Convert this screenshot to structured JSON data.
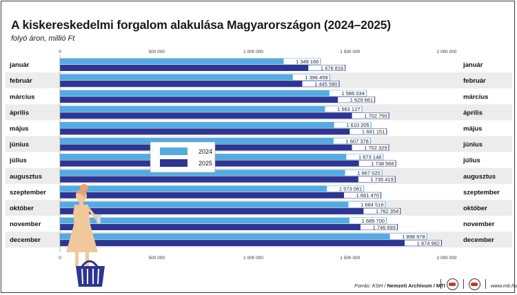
{
  "title": "A kiskereskedelmi forgalom alakulása Magyarországon (2024–2025)",
  "subtitle": "folyó áron, millió Ft",
  "footer": {
    "source_prefix": "Forrás: KSH / ",
    "source_bold": "Nemzeti Archívum / MTI",
    "url": "www.mti.hu"
  },
  "colors": {
    "2024": "#55abe0",
    "2025": "#2e3592",
    "band": "#ececec"
  },
  "chart_data": {
    "type": "bar",
    "orientation": "horizontal",
    "categories": [
      "január",
      "február",
      "március",
      "április",
      "május",
      "június",
      "július",
      "augusztus",
      "szeptember",
      "október",
      "november",
      "december"
    ],
    "series": [
      {
        "name": "2024",
        "values": [
          1349166,
          1396459,
          1586034,
          1563127,
          1610205,
          1607378,
          1673148,
          1667020,
          1573061,
          1684516,
          1689700,
          1898978
        ],
        "labels": [
          "1 349 166",
          "1 396 459",
          "1 586 034",
          "1 563 127",
          "1 610 205",
          "1 607 378",
          "1 673 148",
          "1 667 020",
          "1 573 061",
          "1 684 516",
          "1 689 700",
          "1 898 978"
        ]
      },
      {
        "name": "2025",
        "values": [
          1476816,
          1445580,
          1629661,
          1702750,
          1691151,
          1702329,
          1738566,
          1735419,
          1661470,
          1762354,
          1746693,
          1974982
        ],
        "labels": [
          "1 476 816",
          "1 445 580",
          "1 629 661",
          "1 702 750",
          "1 691 151",
          "1 702 329",
          "1 738 566",
          "1 735 419",
          "1 661 470",
          "1 762 354",
          "1 746 693",
          "1 974 982"
        ]
      }
    ],
    "xlim": [
      0,
      2000000
    ],
    "ticks": [
      0,
      500000,
      1000000,
      1500000,
      2000000
    ],
    "tick_labels": [
      "0",
      "500 000",
      "1 000 000",
      "1 500 000",
      "2 000 000"
    ],
    "legend": {
      "placement": "center-left",
      "entries": [
        "2024",
        "2025"
      ]
    },
    "grid": false,
    "alternating_bands": true
  }
}
